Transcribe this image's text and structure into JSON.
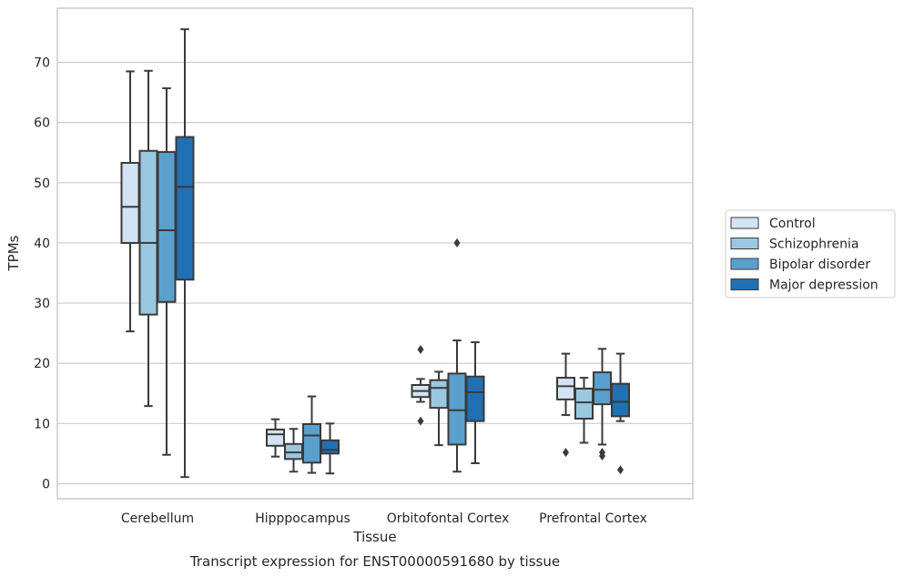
{
  "chart_data": {
    "type": "box",
    "title": "",
    "caption": "Transcript expression for ENST00000591680 by tissue",
    "xlabel": "Tissue",
    "ylabel": "TPMs",
    "ylim": [
      -2.5,
      79
    ],
    "yticks": [
      0,
      10,
      20,
      30,
      40,
      50,
      60,
      70
    ],
    "grid": true,
    "legend_placement": "right",
    "categories": [
      "Cerebellum",
      "Hipppocampus",
      "Orbitofontal Cortex",
      "Prefrontal Cortex"
    ],
    "series": [
      {
        "name": "Control",
        "color": "#d3e3f3",
        "boxes": [
          {
            "whisker_low": 25.3,
            "q1": 40.0,
            "median": 46.0,
            "q3": 53.3,
            "whisker_high": 68.5,
            "outliers": []
          },
          {
            "whisker_low": 4.5,
            "q1": 6.3,
            "median": 8.2,
            "q3": 9.0,
            "whisker_high": 10.7,
            "outliers": []
          },
          {
            "whisker_low": 13.6,
            "q1": 14.4,
            "median": 15.4,
            "q3": 16.4,
            "whisker_high": 17.4,
            "outliers": [
              22.3,
              10.4
            ]
          },
          {
            "whisker_low": 11.4,
            "q1": 14.0,
            "median": 16.2,
            "q3": 17.6,
            "whisker_high": 21.6,
            "outliers": [
              5.2
            ]
          }
        ]
      },
      {
        "name": "Schizophrenia",
        "color": "#9ac8e0",
        "boxes": [
          {
            "whisker_low": 12.9,
            "q1": 28.1,
            "median": 40.0,
            "q3": 55.3,
            "whisker_high": 68.6,
            "outliers": []
          },
          {
            "whisker_low": 2.0,
            "q1": 4.1,
            "median": 5.2,
            "q3": 6.6,
            "whisker_high": 9.1,
            "outliers": []
          },
          {
            "whisker_low": 6.4,
            "q1": 12.6,
            "median": 15.9,
            "q3": 17.2,
            "whisker_high": 18.6,
            "outliers": []
          },
          {
            "whisker_low": 6.8,
            "q1": 10.8,
            "median": 13.5,
            "q3": 15.8,
            "whisker_high": 17.6,
            "outliers": []
          }
        ]
      },
      {
        "name": "Bipolar disorder",
        "color": "#5aa0cd",
        "boxes": [
          {
            "whisker_low": 4.8,
            "q1": 30.2,
            "median": 42.1,
            "q3": 55.1,
            "whisker_high": 65.7,
            "outliers": []
          },
          {
            "whisker_low": 1.8,
            "q1": 3.5,
            "median": 8.0,
            "q3": 9.9,
            "whisker_high": 14.5,
            "outliers": []
          },
          {
            "whisker_low": 2.0,
            "q1": 6.5,
            "median": 12.2,
            "q3": 18.3,
            "whisker_high": 23.8,
            "outliers": [
              40.0
            ]
          },
          {
            "whisker_low": 6.5,
            "q1": 13.2,
            "median": 15.6,
            "q3": 18.5,
            "whisker_high": 22.4,
            "outliers": [
              5.2,
              4.6
            ]
          }
        ]
      },
      {
        "name": "Major depression",
        "color": "#2070b4",
        "boxes": [
          {
            "whisker_low": 1.1,
            "q1": 33.9,
            "median": 49.3,
            "q3": 57.6,
            "whisker_high": 75.5,
            "outliers": []
          },
          {
            "whisker_low": 1.7,
            "q1": 5.0,
            "median": 5.6,
            "q3": 7.2,
            "whisker_high": 10.0,
            "outliers": []
          },
          {
            "whisker_low": 3.4,
            "q1": 10.4,
            "median": 15.2,
            "q3": 17.8,
            "whisker_high": 23.5,
            "outliers": []
          },
          {
            "whisker_low": 10.4,
            "q1": 11.2,
            "median": 13.6,
            "q3": 16.6,
            "whisker_high": 21.6,
            "outliers": [
              2.3
            ]
          }
        ]
      }
    ]
  }
}
